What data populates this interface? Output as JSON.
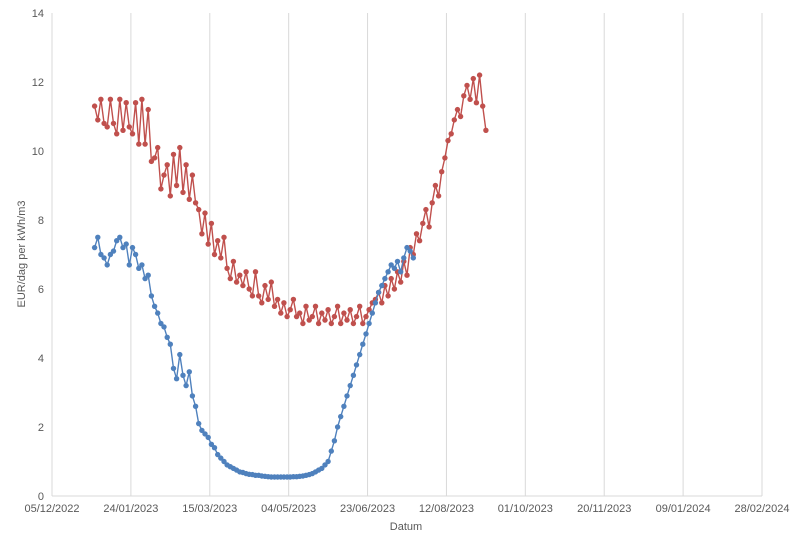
{
  "chart_data": {
    "type": "line",
    "title": "",
    "xlabel": "Datum",
    "ylabel": "EUR/dag per kWh/m3",
    "ylim": [
      0,
      14
    ],
    "yticks": [
      0,
      2,
      4,
      6,
      8,
      10,
      12,
      14
    ],
    "xlim": [
      "2022-12-05",
      "2024-02-28"
    ],
    "xticks": [
      "2022-12-05",
      "2023-01-24",
      "2023-03-15",
      "2023-05-04",
      "2023-06-23",
      "2023-08-12",
      "2023-10-01",
      "2023-11-20",
      "2024-01-09",
      "2024-02-28"
    ],
    "xtick_labels": [
      "05/12/2022",
      "24/01/2023",
      "15/03/2023",
      "04/05/2023",
      "23/06/2023",
      "12/08/2023",
      "01/10/2023",
      "20/11/2023",
      "09/01/2024",
      "28/02/2024"
    ],
    "grid": "vertical",
    "legend": "none",
    "series": [
      {
        "color": "#C0504D",
        "points": [
          [
            "2023-01-01",
            11.3
          ],
          [
            "2023-01-03",
            10.9
          ],
          [
            "2023-01-05",
            11.5
          ],
          [
            "2023-01-07",
            10.8
          ],
          [
            "2023-01-09",
            10.7
          ],
          [
            "2023-01-11",
            11.5
          ],
          [
            "2023-01-13",
            10.8
          ],
          [
            "2023-01-15",
            10.5
          ],
          [
            "2023-01-17",
            11.5
          ],
          [
            "2023-01-19",
            10.6
          ],
          [
            "2023-01-21",
            11.4
          ],
          [
            "2023-01-23",
            10.7
          ],
          [
            "2023-01-25",
            10.5
          ],
          [
            "2023-01-27",
            11.4
          ],
          [
            "2023-01-29",
            10.2
          ],
          [
            "2023-01-31",
            11.5
          ],
          [
            "2023-02-02",
            10.2
          ],
          [
            "2023-02-04",
            11.2
          ],
          [
            "2023-02-06",
            9.7
          ],
          [
            "2023-02-08",
            9.8
          ],
          [
            "2023-02-10",
            10.1
          ],
          [
            "2023-02-12",
            8.9
          ],
          [
            "2023-02-14",
            9.3
          ],
          [
            "2023-02-16",
            9.6
          ],
          [
            "2023-02-18",
            8.7
          ],
          [
            "2023-02-20",
            9.9
          ],
          [
            "2023-02-22",
            9.0
          ],
          [
            "2023-02-24",
            10.1
          ],
          [
            "2023-02-26",
            8.8
          ],
          [
            "2023-02-28",
            9.6
          ],
          [
            "2023-03-02",
            8.6
          ],
          [
            "2023-03-04",
            9.3
          ],
          [
            "2023-03-06",
            8.5
          ],
          [
            "2023-03-08",
            8.3
          ],
          [
            "2023-03-10",
            7.6
          ],
          [
            "2023-03-12",
            8.2
          ],
          [
            "2023-03-14",
            7.3
          ],
          [
            "2023-03-16",
            7.9
          ],
          [
            "2023-03-18",
            7.0
          ],
          [
            "2023-03-20",
            7.4
          ],
          [
            "2023-03-22",
            6.9
          ],
          [
            "2023-03-24",
            7.5
          ],
          [
            "2023-03-26",
            6.6
          ],
          [
            "2023-03-28",
            6.3
          ],
          [
            "2023-03-30",
            6.8
          ],
          [
            "2023-04-01",
            6.2
          ],
          [
            "2023-04-03",
            6.4
          ],
          [
            "2023-04-05",
            6.1
          ],
          [
            "2023-04-07",
            6.5
          ],
          [
            "2023-04-09",
            6.0
          ],
          [
            "2023-04-11",
            5.8
          ],
          [
            "2023-04-13",
            6.5
          ],
          [
            "2023-04-15",
            5.8
          ],
          [
            "2023-04-17",
            5.6
          ],
          [
            "2023-04-19",
            6.1
          ],
          [
            "2023-04-21",
            5.7
          ],
          [
            "2023-04-23",
            6.2
          ],
          [
            "2023-04-25",
            5.5
          ],
          [
            "2023-04-27",
            5.7
          ],
          [
            "2023-04-29",
            5.3
          ],
          [
            "2023-05-01",
            5.6
          ],
          [
            "2023-05-03",
            5.2
          ],
          [
            "2023-05-05",
            5.4
          ],
          [
            "2023-05-07",
            5.7
          ],
          [
            "2023-05-09",
            5.2
          ],
          [
            "2023-05-11",
            5.3
          ],
          [
            "2023-05-13",
            5.0
          ],
          [
            "2023-05-15",
            5.5
          ],
          [
            "2023-05-17",
            5.1
          ],
          [
            "2023-05-19",
            5.2
          ],
          [
            "2023-05-21",
            5.5
          ],
          [
            "2023-05-23",
            5.0
          ],
          [
            "2023-05-25",
            5.3
          ],
          [
            "2023-05-27",
            5.1
          ],
          [
            "2023-05-29",
            5.4
          ],
          [
            "2023-05-31",
            5.0
          ],
          [
            "2023-06-02",
            5.2
          ],
          [
            "2023-06-04",
            5.5
          ],
          [
            "2023-06-06",
            5.0
          ],
          [
            "2023-06-08",
            5.3
          ],
          [
            "2023-06-10",
            5.1
          ],
          [
            "2023-06-12",
            5.4
          ],
          [
            "2023-06-14",
            5.0
          ],
          [
            "2023-06-16",
            5.2
          ],
          [
            "2023-06-18",
            5.5
          ],
          [
            "2023-06-20",
            5.0
          ],
          [
            "2023-06-22",
            5.2
          ],
          [
            "2023-06-24",
            5.4
          ],
          [
            "2023-06-26",
            5.6
          ],
          [
            "2023-06-28",
            5.7
          ],
          [
            "2023-06-30",
            5.9
          ],
          [
            "2023-07-02",
            5.6
          ],
          [
            "2023-07-04",
            6.1
          ],
          [
            "2023-07-06",
            5.8
          ],
          [
            "2023-07-08",
            6.3
          ],
          [
            "2023-07-10",
            6.0
          ],
          [
            "2023-07-12",
            6.5
          ],
          [
            "2023-07-14",
            6.2
          ],
          [
            "2023-07-16",
            6.8
          ],
          [
            "2023-07-18",
            6.4
          ],
          [
            "2023-07-20",
            7.2
          ],
          [
            "2023-07-22",
            7.0
          ],
          [
            "2023-07-24",
            7.6
          ],
          [
            "2023-07-26",
            7.4
          ],
          [
            "2023-07-28",
            7.9
          ],
          [
            "2023-07-30",
            8.3
          ],
          [
            "2023-08-01",
            7.8
          ],
          [
            "2023-08-03",
            8.5
          ],
          [
            "2023-08-05",
            9.0
          ],
          [
            "2023-08-07",
            8.7
          ],
          [
            "2023-08-09",
            9.4
          ],
          [
            "2023-08-11",
            9.8
          ],
          [
            "2023-08-13",
            10.3
          ],
          [
            "2023-08-15",
            10.5
          ],
          [
            "2023-08-17",
            10.9
          ],
          [
            "2023-08-19",
            11.2
          ],
          [
            "2023-08-21",
            11.0
          ],
          [
            "2023-08-23",
            11.6
          ],
          [
            "2023-08-25",
            11.9
          ],
          [
            "2023-08-27",
            11.5
          ],
          [
            "2023-08-29",
            12.1
          ],
          [
            "2023-08-31",
            11.4
          ],
          [
            "2023-09-02",
            12.2
          ],
          [
            "2023-09-04",
            11.3
          ],
          [
            "2023-09-06",
            10.6
          ]
        ]
      },
      {
        "color": "#4F81BD",
        "points": [
          [
            "2023-01-01",
            7.2
          ],
          [
            "2023-01-03",
            7.5
          ],
          [
            "2023-01-05",
            7.0
          ],
          [
            "2023-01-07",
            6.9
          ],
          [
            "2023-01-09",
            6.7
          ],
          [
            "2023-01-11",
            7.0
          ],
          [
            "2023-01-13",
            7.1
          ],
          [
            "2023-01-15",
            7.4
          ],
          [
            "2023-01-17",
            7.5
          ],
          [
            "2023-01-19",
            7.2
          ],
          [
            "2023-01-21",
            7.3
          ],
          [
            "2023-01-23",
            6.7
          ],
          [
            "2023-01-25",
            7.2
          ],
          [
            "2023-01-27",
            7.0
          ],
          [
            "2023-01-29",
            6.6
          ],
          [
            "2023-01-31",
            6.7
          ],
          [
            "2023-02-02",
            6.3
          ],
          [
            "2023-02-04",
            6.4
          ],
          [
            "2023-02-06",
            5.8
          ],
          [
            "2023-02-08",
            5.5
          ],
          [
            "2023-02-10",
            5.3
          ],
          [
            "2023-02-12",
            5.0
          ],
          [
            "2023-02-14",
            4.9
          ],
          [
            "2023-02-16",
            4.6
          ],
          [
            "2023-02-18",
            4.4
          ],
          [
            "2023-02-20",
            3.7
          ],
          [
            "2023-02-22",
            3.4
          ],
          [
            "2023-02-24",
            4.1
          ],
          [
            "2023-02-26",
            3.5
          ],
          [
            "2023-02-28",
            3.2
          ],
          [
            "2023-03-02",
            3.6
          ],
          [
            "2023-03-04",
            2.9
          ],
          [
            "2023-03-06",
            2.6
          ],
          [
            "2023-03-08",
            2.1
          ],
          [
            "2023-03-10",
            1.9
          ],
          [
            "2023-03-12",
            1.8
          ],
          [
            "2023-03-14",
            1.7
          ],
          [
            "2023-03-16",
            1.5
          ],
          [
            "2023-03-18",
            1.4
          ],
          [
            "2023-03-20",
            1.2
          ],
          [
            "2023-03-22",
            1.1
          ],
          [
            "2023-03-24",
            1.0
          ],
          [
            "2023-03-26",
            0.9
          ],
          [
            "2023-03-28",
            0.85
          ],
          [
            "2023-03-30",
            0.8
          ],
          [
            "2023-04-01",
            0.75
          ],
          [
            "2023-04-03",
            0.7
          ],
          [
            "2023-04-05",
            0.68
          ],
          [
            "2023-04-07",
            0.65
          ],
          [
            "2023-04-09",
            0.63
          ],
          [
            "2023-04-11",
            0.62
          ],
          [
            "2023-04-13",
            0.6
          ],
          [
            "2023-04-15",
            0.6
          ],
          [
            "2023-04-17",
            0.58
          ],
          [
            "2023-04-19",
            0.57
          ],
          [
            "2023-04-21",
            0.56
          ],
          [
            "2023-04-23",
            0.55
          ],
          [
            "2023-04-25",
            0.55
          ],
          [
            "2023-04-27",
            0.55
          ],
          [
            "2023-04-29",
            0.55
          ],
          [
            "2023-05-01",
            0.55
          ],
          [
            "2023-05-03",
            0.55
          ],
          [
            "2023-05-05",
            0.55
          ],
          [
            "2023-05-07",
            0.56
          ],
          [
            "2023-05-09",
            0.56
          ],
          [
            "2023-05-11",
            0.57
          ],
          [
            "2023-05-13",
            0.58
          ],
          [
            "2023-05-15",
            0.6
          ],
          [
            "2023-05-17",
            0.62
          ],
          [
            "2023-05-19",
            0.65
          ],
          [
            "2023-05-21",
            0.7
          ],
          [
            "2023-05-23",
            0.75
          ],
          [
            "2023-05-25",
            0.8
          ],
          [
            "2023-05-27",
            0.9
          ],
          [
            "2023-05-29",
            1.0
          ],
          [
            "2023-05-31",
            1.3
          ],
          [
            "2023-06-02",
            1.6
          ],
          [
            "2023-06-04",
            2.0
          ],
          [
            "2023-06-06",
            2.3
          ],
          [
            "2023-06-08",
            2.6
          ],
          [
            "2023-06-10",
            2.9
          ],
          [
            "2023-06-12",
            3.2
          ],
          [
            "2023-06-14",
            3.5
          ],
          [
            "2023-06-16",
            3.8
          ],
          [
            "2023-06-18",
            4.1
          ],
          [
            "2023-06-20",
            4.4
          ],
          [
            "2023-06-22",
            4.7
          ],
          [
            "2023-06-24",
            5.0
          ],
          [
            "2023-06-26",
            5.3
          ],
          [
            "2023-06-28",
            5.6
          ],
          [
            "2023-06-30",
            5.9
          ],
          [
            "2023-07-02",
            6.1
          ],
          [
            "2023-07-04",
            6.3
          ],
          [
            "2023-07-06",
            6.5
          ],
          [
            "2023-07-08",
            6.7
          ],
          [
            "2023-07-10",
            6.6
          ],
          [
            "2023-07-12",
            6.8
          ],
          [
            "2023-07-14",
            6.5
          ],
          [
            "2023-07-16",
            6.9
          ],
          [
            "2023-07-18",
            7.2
          ],
          [
            "2023-07-20",
            7.1
          ],
          [
            "2023-07-22",
            6.9
          ]
        ]
      }
    ]
  }
}
